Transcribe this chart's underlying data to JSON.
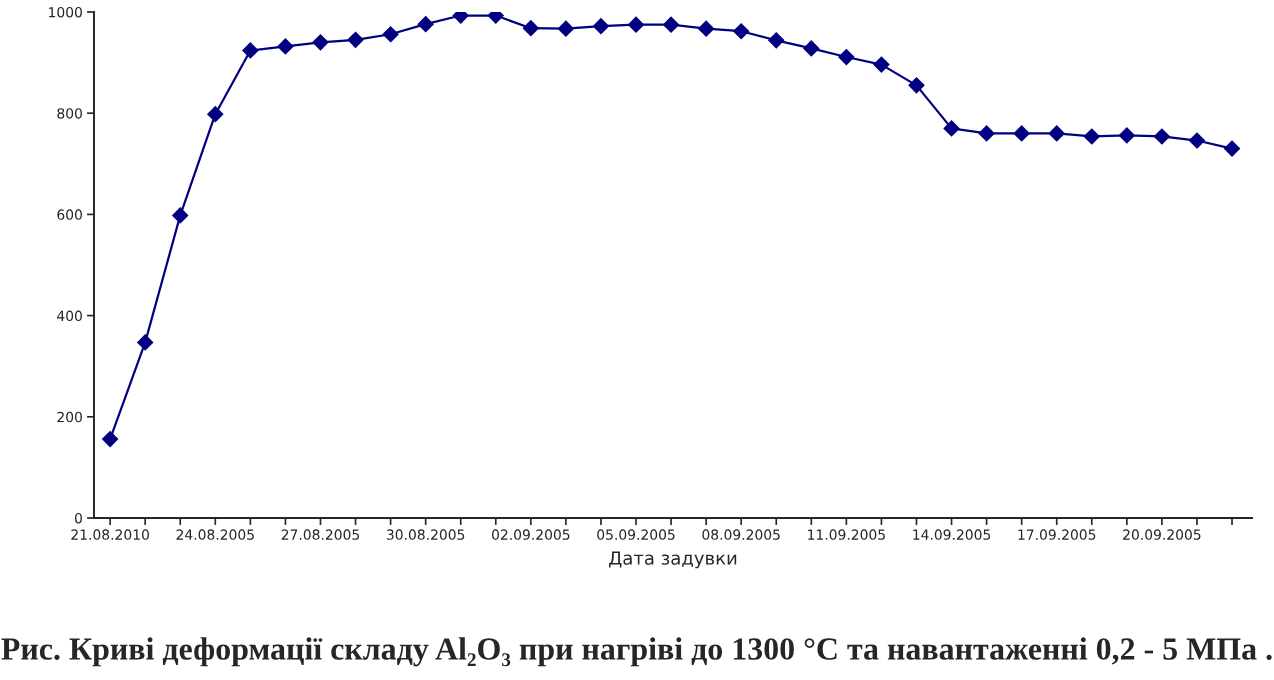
{
  "chart_data": {
    "type": "line",
    "title": "Рис. Криві деформації складу Al₂O₃ при нагріві до 1300 °С та навантаженні 0,2 - 5 МПа .",
    "xlabel": "Дата задувки",
    "categories": [
      "21.08.2010",
      null,
      null,
      "24.08.2005",
      null,
      null,
      "27.08.2005",
      null,
      null,
      "30.08.2005",
      null,
      null,
      "02.09.2005",
      null,
      null,
      "05.09.2005",
      null,
      null,
      "08.09.2005",
      null,
      null,
      "11.09.2005",
      null,
      null,
      "14.09.2005",
      null,
      null,
      "17.09.2005",
      null,
      null,
      "20.09.2005",
      null,
      null
    ],
    "series": [
      {
        "color": "#000080",
        "values": [
          156,
          347,
          598,
          798,
          924,
          932,
          940,
          945,
          956,
          976,
          993,
          993,
          968,
          967,
          972,
          975,
          975,
          967,
          962,
          944,
          928,
          911,
          896,
          855,
          770,
          760,
          760,
          760,
          754,
          756,
          754,
          746,
          730
        ]
      }
    ],
    "ylim": [
      0,
      1000
    ],
    "yticks": [
      0,
      200,
      400,
      600,
      800,
      1000
    ],
    "marker": "diamond",
    "line_style": "solid",
    "grid": false
  }
}
